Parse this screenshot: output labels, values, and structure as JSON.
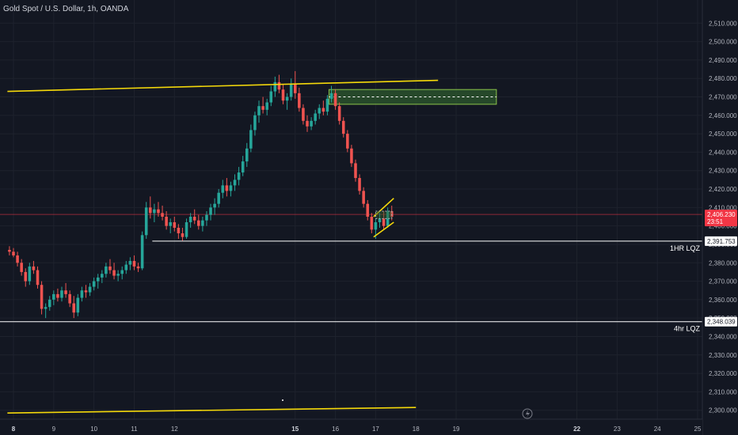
{
  "header": {
    "title": "Gold Spot / U.S. Dollar, 1h, OANDA"
  },
  "colors": {
    "background": "#131722",
    "up": "#26a69a",
    "down": "#ef5350",
    "trendline": "#f5d90a",
    "level": "#ffffff",
    "grid": "#1e222d",
    "axis_text": "#b2b5be",
    "current_price": "#f23645",
    "zone_fill": "#2e5a2e",
    "zone_border": "#8bc34a"
  },
  "chart_data": {
    "type": "candlestick",
    "symbol": "Gold Spot / U.S. Dollar",
    "timeframe": "1h",
    "source": "OANDA",
    "ylim": [
      2290,
      2520
    ],
    "y_ticks": [
      2300,
      2310,
      2320,
      2330,
      2340,
      2350,
      2360,
      2370,
      2380,
      2390,
      2400,
      2410,
      2420,
      2430,
      2440,
      2450,
      2460,
      2470,
      2480,
      2490,
      2500,
      2510
    ],
    "y_tick_labels": [
      "2,300.000",
      "2,310.000",
      "2,320.000",
      "2,330.000",
      "2,340.000",
      "2,350.000",
      "2,360.000",
      "2,370.000",
      "2,380.000",
      "2,390.000",
      "2,400.000",
      "2,410.000",
      "2,420.000",
      "2,430.000",
      "2,440.000",
      "2,450.000",
      "2,460.000",
      "2,470.000",
      "2,480.000",
      "2,490.000",
      "2,500.000",
      "2,510.000"
    ],
    "x_ticks": [
      8,
      9,
      10,
      11,
      12,
      15,
      16,
      17,
      18,
      19,
      22,
      23,
      24,
      25
    ],
    "x_tick_labels": [
      "8",
      "9",
      "10",
      "11",
      "12",
      "15",
      "16",
      "17",
      "18",
      "19",
      "22",
      "23",
      "24",
      "25"
    ],
    "x_bold_ticks": [
      8,
      15,
      22
    ],
    "xlim": [
      7.85,
      25.1
    ],
    "candles": [
      [
        7.9,
        2387,
        2389,
        2384,
        2386
      ],
      [
        8.0,
        2386,
        2388,
        2383,
        2384
      ],
      [
        8.1,
        2384,
        2386,
        2378,
        2380
      ],
      [
        8.2,
        2380,
        2382,
        2373,
        2375
      ],
      [
        8.3,
        2375,
        2377,
        2367,
        2370
      ],
      [
        8.4,
        2370,
        2380,
        2368,
        2378
      ],
      [
        8.5,
        2378,
        2381,
        2374,
        2376
      ],
      [
        8.6,
        2376,
        2378,
        2366,
        2368
      ],
      [
        8.7,
        2368,
        2370,
        2352,
        2355
      ],
      [
        8.8,
        2355,
        2358,
        2350,
        2356
      ],
      [
        8.9,
        2356,
        2362,
        2354,
        2360
      ],
      [
        9.0,
        2360,
        2365,
        2357,
        2363
      ],
      [
        9.1,
        2363,
        2366,
        2359,
        2361
      ],
      [
        9.2,
        2361,
        2367,
        2359,
        2365
      ],
      [
        9.3,
        2365,
        2369,
        2361,
        2363
      ],
      [
        9.4,
        2363,
        2365,
        2356,
        2358
      ],
      [
        9.5,
        2358,
        2362,
        2350,
        2353
      ],
      [
        9.6,
        2353,
        2363,
        2351,
        2361
      ],
      [
        9.7,
        2361,
        2367,
        2359,
        2365
      ],
      [
        9.8,
        2365,
        2368,
        2361,
        2364
      ],
      [
        9.9,
        2364,
        2369,
        2362,
        2367
      ],
      [
        10.0,
        2367,
        2372,
        2365,
        2370
      ],
      [
        10.1,
        2370,
        2374,
        2366,
        2372
      ],
      [
        10.2,
        2372,
        2376,
        2369,
        2374
      ],
      [
        10.3,
        2374,
        2380,
        2372,
        2378
      ],
      [
        10.4,
        2378,
        2382,
        2374,
        2376
      ],
      [
        10.5,
        2376,
        2380,
        2371,
        2373
      ],
      [
        10.6,
        2373,
        2376,
        2370,
        2374
      ],
      [
        10.7,
        2374,
        2378,
        2371,
        2376
      ],
      [
        10.8,
        2376,
        2381,
        2374,
        2379
      ],
      [
        10.9,
        2379,
        2383,
        2376,
        2381
      ],
      [
        11.0,
        2381,
        2384,
        2376,
        2378
      ],
      [
        11.1,
        2378,
        2380,
        2375,
        2377
      ],
      [
        11.2,
        2377,
        2397,
        2376,
        2395
      ],
      [
        11.3,
        2395,
        2413,
        2393,
        2410
      ],
      [
        11.4,
        2410,
        2416,
        2404,
        2407
      ],
      [
        11.5,
        2407,
        2412,
        2402,
        2409
      ],
      [
        11.6,
        2409,
        2413,
        2405,
        2407
      ],
      [
        11.7,
        2407,
        2411,
        2403,
        2405
      ],
      [
        11.8,
        2405,
        2408,
        2398,
        2400
      ],
      [
        11.9,
        2400,
        2404,
        2396,
        2402
      ],
      [
        12.0,
        2402,
        2405,
        2397,
        2399
      ],
      [
        12.1,
        2399,
        2401,
        2393,
        2396
      ],
      [
        12.2,
        2396,
        2399,
        2392,
        2394
      ],
      [
        12.3,
        2394,
        2404,
        2393,
        2402
      ],
      [
        12.4,
        2402,
        2407,
        2399,
        2405
      ],
      [
        12.5,
        2405,
        2409,
        2401,
        2403
      ],
      [
        12.6,
        2403,
        2406,
        2398,
        2400
      ],
      [
        12.7,
        2400,
        2405,
        2397,
        2403
      ],
      [
        12.8,
        2403,
        2408,
        2400,
        2406
      ],
      [
        12.9,
        2406,
        2412,
        2403,
        2410
      ],
      [
        13.0,
        2410,
        2415,
        2406,
        2412
      ],
      [
        13.1,
        2412,
        2420,
        2410,
        2418
      ],
      [
        13.2,
        2418,
        2425,
        2415,
        2422
      ],
      [
        13.3,
        2422,
        2426,
        2416,
        2419
      ],
      [
        13.4,
        2419,
        2424,
        2416,
        2422
      ],
      [
        13.5,
        2422,
        2428,
        2419,
        2425
      ],
      [
        13.6,
        2425,
        2432,
        2422,
        2429
      ],
      [
        13.7,
        2429,
        2438,
        2427,
        2435
      ],
      [
        13.8,
        2435,
        2445,
        2432,
        2442
      ],
      [
        13.9,
        2442,
        2455,
        2440,
        2452
      ],
      [
        14.0,
        2452,
        2462,
        2449,
        2460
      ],
      [
        14.1,
        2460,
        2468,
        2456,
        2465
      ],
      [
        14.2,
        2465,
        2470,
        2461,
        2463
      ],
      [
        14.3,
        2463,
        2469,
        2460,
        2467
      ],
      [
        14.4,
        2467,
        2476,
        2465,
        2473
      ],
      [
        14.5,
        2473,
        2481,
        2470,
        2478
      ],
      [
        14.6,
        2478,
        2482,
        2472,
        2474
      ],
      [
        14.7,
        2474,
        2477,
        2466,
        2468
      ],
      [
        14.8,
        2468,
        2472,
        2463,
        2470
      ],
      [
        14.9,
        2470,
        2480,
        2468,
        2477
      ],
      [
        15.0,
        2477,
        2484,
        2469,
        2472
      ],
      [
        15.1,
        2472,
        2475,
        2462,
        2464
      ],
      [
        15.2,
        2464,
        2466,
        2455,
        2457
      ],
      [
        15.3,
        2457,
        2460,
        2451,
        2454
      ],
      [
        15.4,
        2454,
        2459,
        2452,
        2457
      ],
      [
        15.5,
        2457,
        2463,
        2455,
        2461
      ],
      [
        15.6,
        2461,
        2466,
        2458,
        2464
      ],
      [
        15.7,
        2464,
        2468,
        2460,
        2462
      ],
      [
        15.8,
        2462,
        2471,
        2460,
        2469
      ],
      [
        15.9,
        2469,
        2476,
        2467,
        2472
      ],
      [
        16.0,
        2472,
        2474,
        2463,
        2465
      ],
      [
        16.1,
        2465,
        2467,
        2455,
        2457
      ],
      [
        16.2,
        2457,
        2459,
        2448,
        2450
      ],
      [
        16.3,
        2450,
        2452,
        2440,
        2442
      ],
      [
        16.4,
        2442,
        2444,
        2432,
        2434
      ],
      [
        16.5,
        2434,
        2436,
        2424,
        2426
      ],
      [
        16.6,
        2426,
        2428,
        2417,
        2419
      ],
      [
        16.7,
        2419,
        2421,
        2410,
        2412
      ],
      [
        16.8,
        2412,
        2414,
        2403,
        2405
      ],
      [
        16.9,
        2405,
        2407,
        2396,
        2398
      ],
      [
        17.0,
        2398,
        2404,
        2393,
        2402
      ],
      [
        17.1,
        2402,
        2407,
        2399,
        2404
      ],
      [
        17.2,
        2404,
        2408,
        2398,
        2400
      ],
      [
        17.3,
        2400,
        2410,
        2399,
        2408
      ],
      [
        17.4,
        2408,
        2411,
        2403,
        2405
      ]
    ],
    "annotations": {
      "trendlines": [
        {
          "x1": 7.85,
          "y1": 2473,
          "x2": 18.55,
          "y2": 2479
        },
        {
          "x1": 7.85,
          "y1": 2298.5,
          "x2": 18.0,
          "y2": 2301.5
        }
      ],
      "horizontal_levels": [
        {
          "price": 2391.753,
          "label": "1HR LQZ",
          "price_label": "2,391.753",
          "x_start": 11.45,
          "full_width": false
        },
        {
          "price": 2348.039,
          "label": "4hr LQZ",
          "price_label": "2,348.039",
          "x_start": 7.85,
          "full_width": true
        }
      ],
      "zone": {
        "x1": 15.84,
        "x2": 20.0,
        "y_top": 2474,
        "y_bottom": 2466,
        "mid": 2470
      },
      "channel": {
        "upper": {
          "x1": 16.95,
          "y1": 2405,
          "x2": 17.45,
          "y2": 2415
        },
        "lower": {
          "x1": 16.95,
          "y1": 2394,
          "x2": 17.45,
          "y2": 2402
        },
        "box": {
          "x1": 17.0,
          "x2": 17.4,
          "y_top": 2408,
          "y_bottom": 2404
        }
      }
    },
    "current_price": {
      "value": 2406.23,
      "label": "2,406.230",
      "countdown": "23:51"
    }
  }
}
